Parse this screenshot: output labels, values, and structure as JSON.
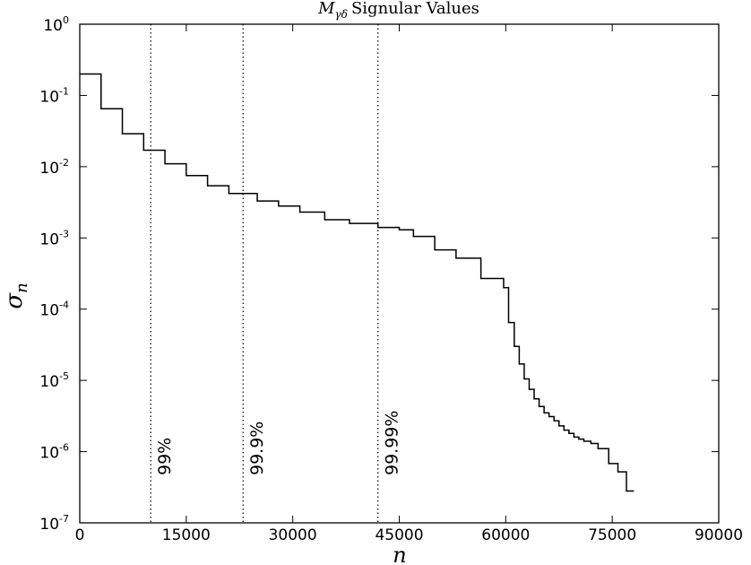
{
  "chart_data": {
    "type": "line",
    "title": {
      "symbol": "M",
      "subscript": "γδ",
      "text": "Signular Values"
    },
    "xlabel": "n",
    "ylabel": {
      "symbol": "σ",
      "subscript": "n"
    },
    "xlim": [
      0,
      90000
    ],
    "ylim": [
      1e-07,
      1
    ],
    "y_scale": "log",
    "grid": false,
    "x_ticks": [
      {
        "value": 0,
        "label": "0"
      },
      {
        "value": 15000,
        "label": "15000"
      },
      {
        "value": 30000,
        "label": "30000"
      },
      {
        "value": 45000,
        "label": "45000"
      },
      {
        "value": 60000,
        "label": "60000"
      },
      {
        "value": 75000,
        "label": "75000"
      },
      {
        "value": 90000,
        "label": "90000"
      }
    ],
    "y_ticks": [
      {
        "value": 1e-07,
        "base": "10",
        "exp": "-7"
      },
      {
        "value": 1e-06,
        "base": "10",
        "exp": "-6"
      },
      {
        "value": 1e-05,
        "base": "10",
        "exp": "-5"
      },
      {
        "value": 0.0001,
        "base": "10",
        "exp": "-4"
      },
      {
        "value": 0.001,
        "base": "10",
        "exp": "-3"
      },
      {
        "value": 0.01,
        "base": "10",
        "exp": "-2"
      },
      {
        "value": 0.1,
        "base": "10",
        "exp": "-1"
      },
      {
        "value": 1,
        "base": "10",
        "exp": "0"
      }
    ],
    "series": [
      {
        "style": "step",
        "color": "#000000",
        "points": [
          [
            0,
            0.2
          ],
          [
            3000,
            0.065
          ],
          [
            6000,
            0.029
          ],
          [
            9000,
            0.017
          ],
          [
            12000,
            0.011
          ],
          [
            15000,
            0.0075
          ],
          [
            18000,
            0.0054
          ],
          [
            21000,
            0.0042
          ],
          [
            25000,
            0.0033
          ],
          [
            28000,
            0.0028
          ],
          [
            31000,
            0.0023
          ],
          [
            34500,
            0.0018
          ],
          [
            38000,
            0.0016
          ],
          [
            42000,
            0.0014
          ],
          [
            45000,
            0.0013
          ],
          [
            47000,
            0.00105
          ],
          [
            50000,
            0.00068
          ],
          [
            53000,
            0.00052
          ],
          [
            56500,
            0.00027
          ],
          [
            59700,
            0.0002
          ],
          [
            60400,
            6.5e-05
          ],
          [
            61200,
            3e-05
          ],
          [
            61900,
            1.7e-05
          ],
          [
            62600,
            1.05e-05
          ],
          [
            63300,
            7.5e-06
          ],
          [
            64000,
            5.5e-06
          ],
          [
            64700,
            4.3e-06
          ],
          [
            65400,
            3.5e-06
          ],
          [
            66100,
            3.1e-06
          ],
          [
            66800,
            2.7e-06
          ],
          [
            67500,
            2.3e-06
          ],
          [
            68200,
            2e-06
          ],
          [
            68900,
            1.8e-06
          ],
          [
            69600,
            1.6e-06
          ],
          [
            70300,
            1.5e-06
          ],
          [
            71000,
            1.4e-06
          ],
          [
            72000,
            1.3e-06
          ],
          [
            73000,
            1.1e-06
          ],
          [
            74500,
            6.8e-07
          ],
          [
            75800,
            5.2e-07
          ],
          [
            77000,
            2.8e-07
          ],
          [
            78000,
            2.8e-07
          ]
        ]
      }
    ],
    "annotations": [
      {
        "x": 10000,
        "label": "99%",
        "style": "dotted"
      },
      {
        "x": 23000,
        "label": "99.9%",
        "style": "dotted"
      },
      {
        "x": 42000,
        "label": "99.99%",
        "style": "dotted"
      }
    ]
  }
}
